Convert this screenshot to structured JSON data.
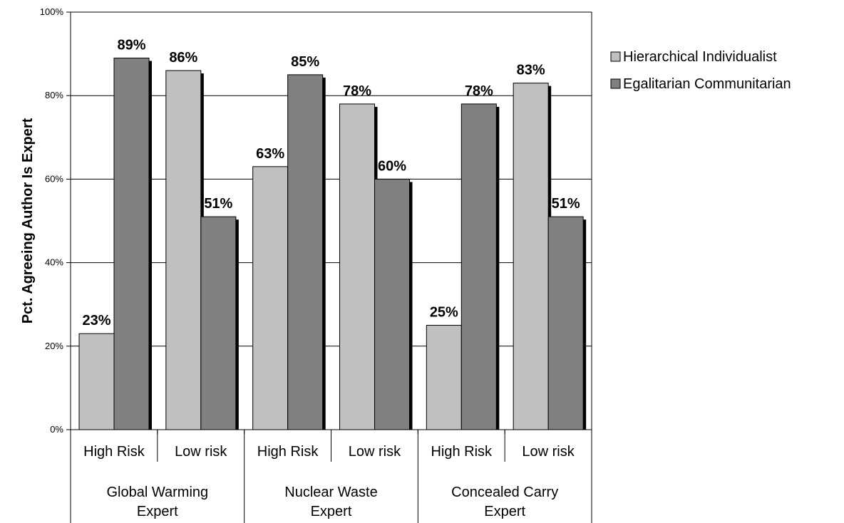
{
  "chart_data": {
    "type": "bar",
    "ylabel": "Pct. Agreeing Author Is Expert",
    "ylim": [
      0,
      100
    ],
    "yticks": [
      "0%",
      "20%",
      "40%",
      "60%",
      "80%",
      "100%"
    ],
    "groups": [
      {
        "line1": "Global Warming",
        "line2": "Expert"
      },
      {
        "line1": "Nuclear Waste",
        "line2": "Expert"
      },
      {
        "line1": "Concealed Carry",
        "line2": "Expert"
      }
    ],
    "categories": [
      "High Risk",
      "Low risk",
      "High Risk",
      "Low risk",
      "High Risk",
      "Low risk"
    ],
    "series": [
      {
        "name": "Hierarchical Individualist",
        "color": "#c0c0c0",
        "values": [
          23,
          86,
          63,
          78,
          25,
          83
        ],
        "labels": [
          "23%",
          "86%",
          "63%",
          "78%",
          "25%",
          "83%"
        ]
      },
      {
        "name": "Egalitarian Communitarian",
        "color": "#808080",
        "values": [
          89,
          51,
          85,
          60,
          78,
          51
        ],
        "labels": [
          "89%",
          "51%",
          "85%",
          "60%",
          "78%",
          "51%"
        ]
      }
    ],
    "grid": true,
    "legend": "right"
  }
}
